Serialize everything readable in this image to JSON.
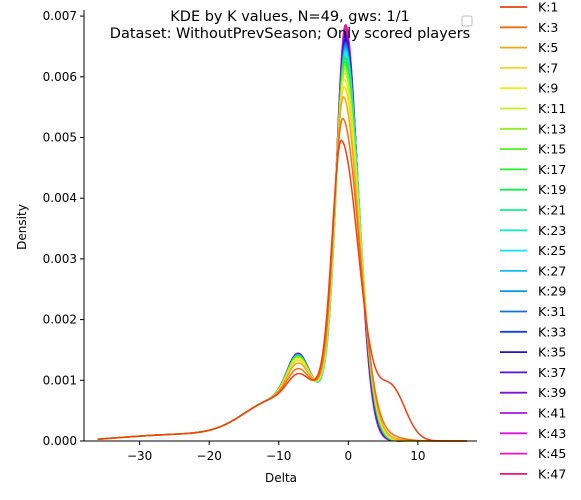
{
  "chart_data": {
    "type": "line",
    "title_lines": [
      "KDE by K values, N=49, gws: 1/1",
      "Dataset: WithoutPrevSeason; Only scored players"
    ],
    "xlabel": "Delta",
    "ylabel": "Density",
    "xlim": [
      -38,
      18.5
    ],
    "ylim": [
      0,
      0.0071
    ],
    "xticks": [
      -30,
      -20,
      -10,
      0,
      10
    ],
    "xtick_labels": [
      "−30",
      "−20",
      "−10",
      "0",
      "10"
    ],
    "yticks": [
      0,
      0.001,
      0.002,
      0.003,
      0.004,
      0.005,
      0.006,
      0.007
    ],
    "ytick_labels": [
      "0.000",
      "0.001",
      "0.002",
      "0.003",
      "0.004",
      "0.005",
      "0.006",
      "0.007"
    ],
    "grid": false,
    "legend_position": "outside-right",
    "x_range": [
      -36,
      17
    ],
    "series": [
      {
        "name": "K:1",
        "color": "#ee4010",
        "peak": 0.00485,
        "peak_x": -1.0,
        "bump": 0.00098,
        "tail": 0.00085
      },
      {
        "name": "K:3",
        "color": "#f07010",
        "peak": 0.00522,
        "peak_x": -0.8,
        "bump": 0.00108,
        "tail": 5e-05
      },
      {
        "name": "K:5",
        "color": "#f4a510",
        "peak": 0.00558,
        "peak_x": -0.7,
        "bump": 0.00118,
        "tail": 2e-05
      },
      {
        "name": "K:7",
        "color": "#f8d820",
        "peak": 0.00575,
        "peak_x": -0.6,
        "bump": 0.00123,
        "tail": 0
      },
      {
        "name": "K:9",
        "color": "#e8f020",
        "peak": 0.00588,
        "peak_x": -0.6,
        "bump": 0.00126,
        "tail": 0
      },
      {
        "name": "K:11",
        "color": "#c0f020",
        "peak": 0.00598,
        "peak_x": -0.5,
        "bump": 0.00128,
        "tail": 0
      },
      {
        "name": "K:13",
        "color": "#90f020",
        "peak": 0.00606,
        "peak_x": -0.5,
        "bump": 0.00129,
        "tail": 0
      },
      {
        "name": "K:15",
        "color": "#50f020",
        "peak": 0.00612,
        "peak_x": -0.5,
        "bump": 0.0013,
        "tail": 0
      },
      {
        "name": "K:17",
        "color": "#20f020",
        "peak": 0.00617,
        "peak_x": -0.5,
        "bump": 0.00131,
        "tail": 0
      },
      {
        "name": "K:19",
        "color": "#10f050",
        "peak": 0.00622,
        "peak_x": -0.5,
        "bump": 0.00131,
        "tail": 0
      },
      {
        "name": "K:21",
        "color": "#10f090",
        "peak": 0.00626,
        "peak_x": -0.5,
        "bump": 0.00132,
        "tail": 0
      },
      {
        "name": "K:23",
        "color": "#10f0c8",
        "peak": 0.0063,
        "peak_x": -0.4,
        "bump": 0.00132,
        "tail": 0
      },
      {
        "name": "K:25",
        "color": "#10e0f0",
        "peak": 0.00634,
        "peak_x": -0.4,
        "bump": 0.00133,
        "tail": 0
      },
      {
        "name": "K:27",
        "color": "#10c0f0",
        "peak": 0.00638,
        "peak_x": -0.4,
        "bump": 0.00133,
        "tail": 0
      },
      {
        "name": "K:29",
        "color": "#1098e0",
        "peak": 0.00642,
        "peak_x": -0.4,
        "bump": 0.00134,
        "tail": 0
      },
      {
        "name": "K:31",
        "color": "#1070e0",
        "peak": 0.00646,
        "peak_x": -0.4,
        "bump": 0.00134,
        "tail": 0
      },
      {
        "name": "K:33",
        "color": "#1040e8",
        "peak": 0.0065,
        "peak_x": -0.4,
        "bump": 0.00134,
        "tail": 0
      },
      {
        "name": "K:35",
        "color": "#2010d0",
        "peak": 0.00654,
        "peak_x": -0.4,
        "bump": 0.00135,
        "tail": 0
      },
      {
        "name": "K:37",
        "color": "#5010e0",
        "peak": 0.00658,
        "peak_x": -0.4,
        "bump": 0.00135,
        "tail": 0
      },
      {
        "name": "K:39",
        "color": "#8010d8",
        "peak": 0.00662,
        "peak_x": -0.4,
        "bump": 0.00135,
        "tail": 0
      },
      {
        "name": "K:41",
        "color": "#b010e0",
        "peak": 0.00666,
        "peak_x": -0.4,
        "bump": 0.00136,
        "tail": 0
      },
      {
        "name": "K:43",
        "color": "#d810e0",
        "peak": 0.0067,
        "peak_x": -0.4,
        "bump": 0.00136,
        "tail": 0
      },
      {
        "name": "K:45",
        "color": "#f010c0",
        "peak": 0.00674,
        "peak_x": -0.4,
        "bump": 0.00136,
        "tail": 0
      },
      {
        "name": "K:47",
        "color": "#f01080",
        "peak": 0.00678,
        "peak_x": -0.4,
        "bump": 0.00136,
        "tail": 0
      }
    ]
  }
}
